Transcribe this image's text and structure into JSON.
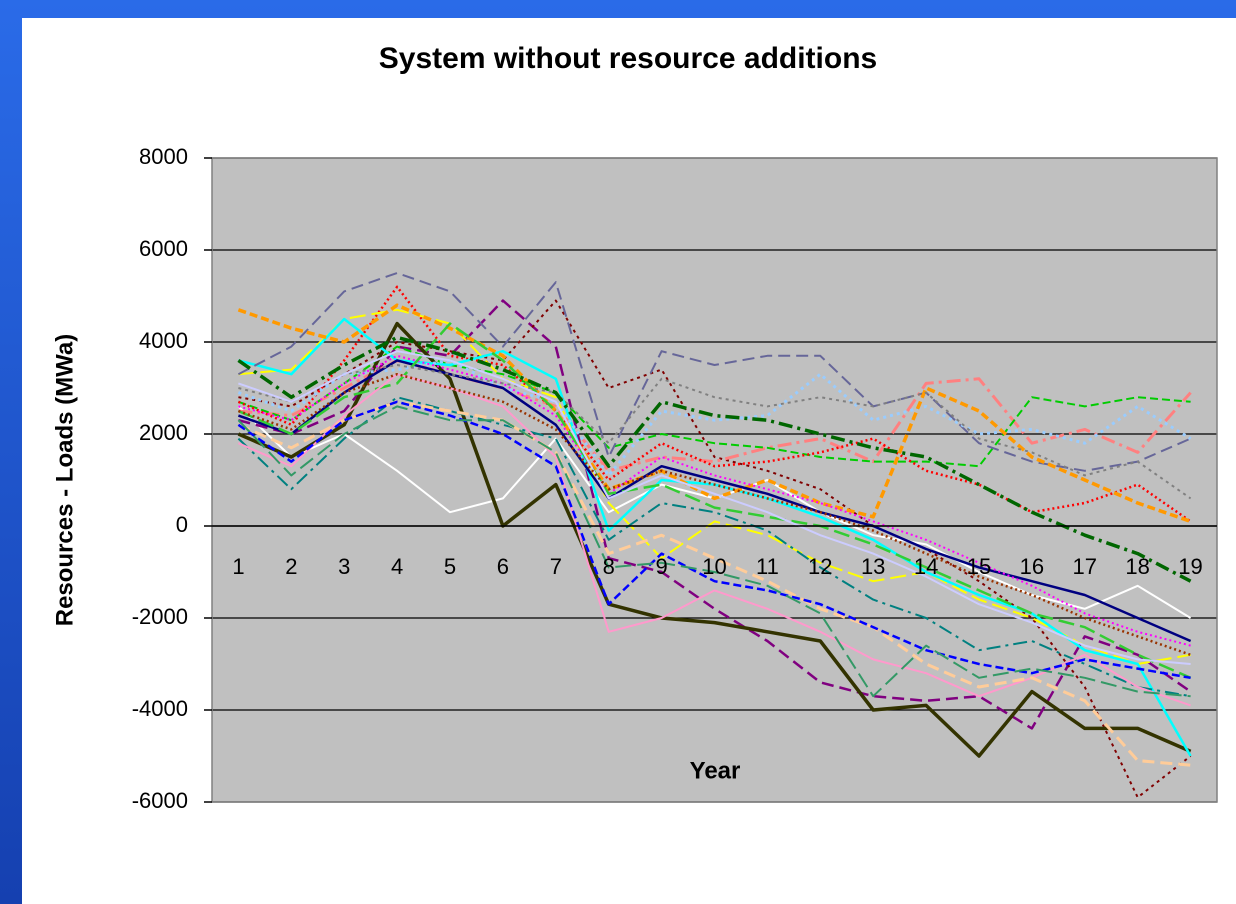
{
  "chart_data": {
    "type": "line",
    "title": "System without resource additions",
    "x_label": "Year",
    "y_label": "Resources - Loads (MWa)",
    "categories": [
      1,
      2,
      3,
      4,
      5,
      6,
      7,
      8,
      9,
      10,
      11,
      12,
      13,
      14,
      15,
      16,
      17,
      18,
      19
    ],
    "ylim": [
      -6000,
      8000
    ],
    "yticks": [
      -6000,
      -4000,
      -2000,
      0,
      2000,
      4000,
      6000,
      8000
    ],
    "grid": true,
    "background": "#c0c0c0",
    "series": [
      {
        "color": "#ffffff",
        "values": [
          2600,
          1500,
          2000,
          1200,
          300,
          600,
          1900,
          300,
          900,
          600,
          1000,
          300,
          -200,
          -400,
          -1000,
          -1500,
          -1800,
          -1300,
          -2000
        ]
      },
      {
        "color": "#800080",
        "values": [
          2300,
          2000,
          2500,
          3900,
          3700,
          4900,
          3900,
          -700,
          -1000,
          -1800,
          -2500,
          -3400,
          -3700,
          -3800,
          -3700,
          -4400,
          -2400,
          -2800,
          -3600
        ]
      },
      {
        "color": "#800000",
        "values": [
          2800,
          2600,
          3300,
          4000,
          3800,
          3600,
          4900,
          3000,
          3400,
          1500,
          1200,
          800,
          0,
          -500,
          -1200,
          -2000,
          -3500,
          -5900,
          -5000
        ]
      },
      {
        "color": "#ff8080",
        "values": [
          2500,
          2400,
          3000,
          3600,
          3300,
          3000,
          2600,
          1200,
          1500,
          1400,
          1700,
          1900,
          1400,
          3100,
          3200,
          1800,
          2100,
          1600,
          2900
        ]
      },
      {
        "color": "#00cc00",
        "values": [
          2700,
          2300,
          3100,
          3900,
          3500,
          3300,
          2900,
          1700,
          2000,
          1800,
          1700,
          1500,
          1400,
          1400,
          1300,
          2800,
          2600,
          2800,
          2700
        ]
      },
      {
        "color": "#333300",
        "values": [
          2000,
          1500,
          2200,
          4400,
          3200,
          0,
          900,
          -1700,
          -2000,
          -2100,
          -2300,
          -2500,
          -4000,
          -3900,
          -5000,
          -3600,
          -4400,
          -4400,
          -4900
        ]
      },
      {
        "color": "#ff0000",
        "values": [
          2700,
          2200,
          3600,
          5200,
          3700,
          3500,
          2500,
          1000,
          1800,
          1300,
          1400,
          1600,
          1900,
          1200,
          900,
          300,
          500,
          900,
          100
        ]
      },
      {
        "color": "#ffff00",
        "values": [
          3300,
          3400,
          4500,
          4700,
          4400,
          3200,
          2800,
          500,
          -700,
          100,
          -200,
          -800,
          -1200,
          -1000,
          -1600,
          -2000,
          -2600,
          -3000,
          -2800
        ]
      },
      {
        "color": "#00ffff",
        "values": [
          3600,
          3300,
          4500,
          3600,
          3500,
          3800,
          3200,
          -100,
          1000,
          900,
          600,
          200,
          -300,
          -1000,
          -1500,
          -1900,
          -2700,
          -3000,
          -5000
        ]
      },
      {
        "color": "#666699",
        "values": [
          3300,
          3900,
          5100,
          5500,
          5100,
          3900,
          5300,
          1500,
          3800,
          3500,
          3700,
          3700,
          2600,
          2900,
          1800,
          1400,
          1200,
          1400,
          1900
        ]
      },
      {
        "color": "#99ccff",
        "values": [
          2900,
          2500,
          3300,
          3400,
          3600,
          3000,
          2700,
          1100,
          2500,
          2300,
          2400,
          3300,
          2300,
          2600,
          2000,
          2100,
          1800,
          2600,
          1900
        ]
      },
      {
        "color": "#008080",
        "values": [
          1900,
          800,
          1900,
          2800,
          2500,
          2200,
          1900,
          -300,
          500,
          300,
          -100,
          -900,
          -1600,
          -2000,
          -2700,
          -2500,
          -3000,
          -3500,
          -3700
        ]
      },
      {
        "color": "#ff9900",
        "values": [
          4700,
          4300,
          4000,
          4800,
          4300,
          3700,
          2500,
          800,
          1200,
          600,
          1000,
          500,
          200,
          3000,
          2500,
          1500,
          1000,
          500,
          100
        ]
      },
      {
        "color": "#000080",
        "values": [
          2400,
          2000,
          2900,
          3600,
          3300,
          3000,
          2200,
          600,
          1300,
          1000,
          700,
          300,
          0,
          -500,
          -900,
          -1200,
          -1500,
          -2000,
          -2500
        ]
      },
      {
        "color": "#ff00ff",
        "values": [
          2600,
          2300,
          3100,
          3700,
          3400,
          3100,
          2400,
          700,
          1500,
          1100,
          800,
          500,
          100,
          -300,
          -800,
          -1300,
          -1900,
          -2300,
          -2600
        ]
      },
      {
        "color": "#33cc33",
        "values": [
          2500,
          2000,
          2800,
          3100,
          4400,
          3600,
          2500,
          700,
          900,
          400,
          200,
          0,
          -400,
          -900,
          -1400,
          -1900,
          -2200,
          -2800,
          -3300
        ]
      },
      {
        "color": "#ff99cc",
        "values": [
          1800,
          1300,
          2400,
          3300,
          3000,
          2600,
          1500,
          -2300,
          -2000,
          -1400,
          -1800,
          -2300,
          -2900,
          -3200,
          -3700,
          -3300,
          -2800,
          -3500,
          -3900
        ]
      },
      {
        "color": "#ffcc99",
        "values": [
          2200,
          1700,
          2300,
          2700,
          2500,
          2300,
          1600,
          -600,
          -200,
          -700,
          -1200,
          -1800,
          -2200,
          -3000,
          -3500,
          -3300,
          -3800,
          -5100,
          -5200
        ]
      },
      {
        "color": "#808080",
        "values": [
          3000,
          2700,
          3300,
          3500,
          3300,
          3100,
          2900,
          1800,
          3200,
          2800,
          2600,
          2800,
          2600,
          2900,
          1900,
          1600,
          1100,
          1400,
          600
        ]
      },
      {
        "color": "#006600",
        "values": [
          3600,
          2800,
          3500,
          4100,
          3800,
          3400,
          2900,
          1300,
          2700,
          2400,
          2300,
          2000,
          1700,
          1500,
          900,
          300,
          -200,
          -600,
          -1200
        ]
      },
      {
        "color": "#0000ff",
        "values": [
          2200,
          1400,
          2300,
          2700,
          2400,
          2000,
          1300,
          -1700,
          -600,
          -1200,
          -1400,
          -1700,
          -2200,
          -2700,
          -3000,
          -3200,
          -2900,
          -3100,
          -3300
        ]
      },
      {
        "color": "#ccccff",
        "values": [
          3100,
          2700,
          3300,
          3800,
          3600,
          3200,
          2700,
          600,
          1100,
          700,
          300,
          -200,
          -600,
          -1100,
          -1700,
          -2100,
          -2600,
          -2900,
          -3000
        ]
      },
      {
        "color": "#993300",
        "values": [
          2500,
          2100,
          2900,
          3300,
          3000,
          2700,
          2100,
          800,
          1200,
          900,
          600,
          300,
          -100,
          -600,
          -1100,
          -1500,
          -2000,
          -2400,
          -2800
        ]
      },
      {
        "color": "#339966",
        "values": [
          2300,
          1100,
          2000,
          2600,
          2300,
          2300,
          1600,
          -900,
          -800,
          -1000,
          -1300,
          -1900,
          -3700,
          -2600,
          -3300,
          -3100,
          -3300,
          -3600,
          -3700
        ]
      }
    ]
  }
}
